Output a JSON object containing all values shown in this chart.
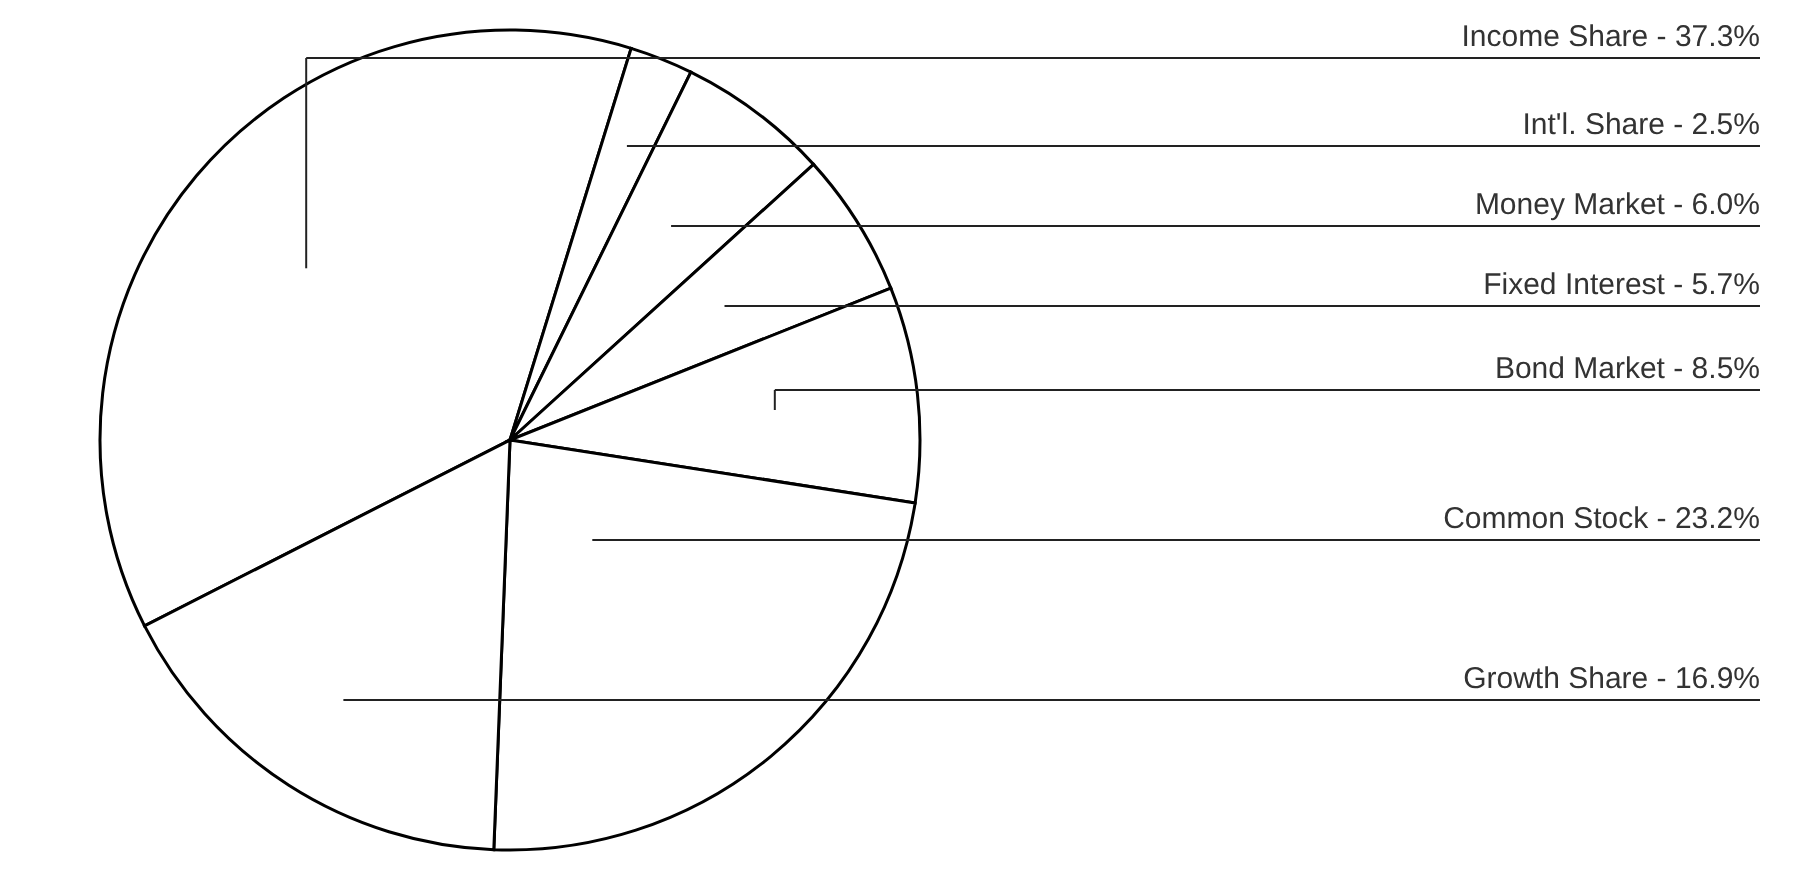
{
  "chart_data": {
    "type": "pie",
    "categories": [
      "Income Share - 37.3%",
      "Int'l. Share - 2.5%",
      "Money Market - 6.0%",
      "Fixed Interest - 5.7%",
      "Bond Market - 8.5%",
      "Common Stock - 23.2%",
      "Growth Share - 16.9%"
    ],
    "values": [
      37.3,
      2.5,
      6.0,
      5.7,
      8.5,
      23.2,
      16.9
    ],
    "colors": [
      "#ffffff",
      "#ffffff",
      "#ffffff",
      "#ffffff",
      "#ffffff",
      "#ffffff",
      "#ffffff"
    ],
    "legend": false
  }
}
